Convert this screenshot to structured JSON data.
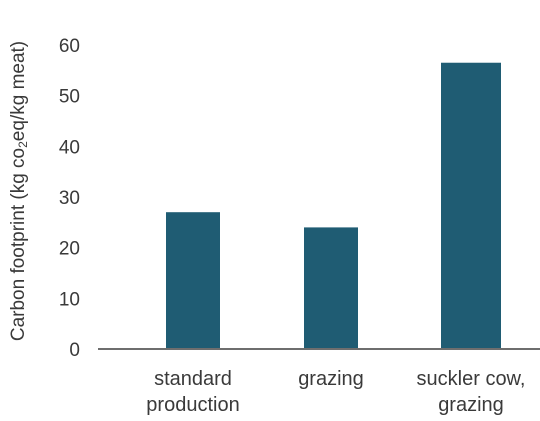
{
  "chart_data": {
    "type": "bar",
    "title": "",
    "xlabel": "",
    "ylabel_main": "Carbon footprint (kg co",
    "ylabel_sub": "2",
    "ylabel_tail": "eq/kg meat)",
    "categories": [
      [
        "standard",
        "production"
      ],
      [
        "grazing"
      ],
      [
        "suckler cow,",
        "grazing"
      ]
    ],
    "values": [
      27,
      24,
      56.5
    ],
    "ylim": [
      0,
      60
    ],
    "yticks": [
      0,
      10,
      20,
      30,
      40,
      50,
      60
    ],
    "grid": false,
    "legend": "none",
    "bar_color": "#1f5c73",
    "axis_color": "#6e6e6e"
  }
}
